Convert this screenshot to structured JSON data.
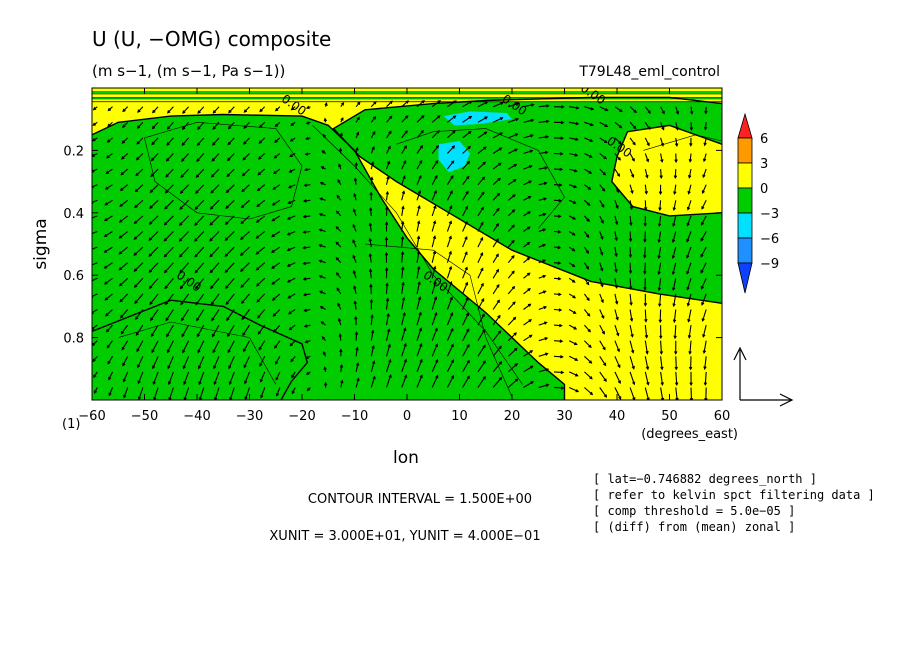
{
  "chart_data": {
    "type": "contour",
    "title": "U (U, −OMG) composite",
    "subtitle": "(m s−1, (m s−1, Pa s−1))",
    "experiment": "T79L48_eml_control",
    "xlabel": "lon",
    "xunits": "(degrees_east)",
    "ylabel": "sigma",
    "y_origin_label": "(1)",
    "xlim": [
      -60,
      60
    ],
    "ylim": [
      0.0,
      1.0
    ],
    "y_inverted": true,
    "x_ticks": [
      -60,
      -50,
      -40,
      -30,
      -20,
      -10,
      0,
      10,
      20,
      30,
      40,
      50,
      60
    ],
    "x_tick_labels": [
      "−60",
      "−50",
      "−40",
      "−30",
      "−20",
      "−10",
      "0",
      "10",
      "20",
      "30",
      "40",
      "50",
      "60"
    ],
    "y_ticks": [
      0.2,
      0.4,
      0.6,
      0.8
    ],
    "y_tick_labels": [
      "0.2",
      "0.4",
      "0.6",
      "0.8"
    ],
    "colorbar": {
      "levels": [
        6,
        3,
        0,
        -3,
        -6,
        -9
      ],
      "level_labels": [
        "6",
        "3",
        "0",
        "−3",
        "−6",
        "−9"
      ],
      "colors": [
        "#ff2020",
        "#ff9900",
        "#ffff00",
        "#00cc00",
        "#00e0ff",
        "#1e90ff",
        "#1040ff"
      ]
    },
    "contour_labels": [
      {
        "text": "0.00",
        "lon": -42,
        "sigma": 0.63
      },
      {
        "text": "0.00",
        "lon": 5,
        "sigma": 0.63
      },
      {
        "text": "0.00",
        "lon": 40,
        "sigma": 0.2
      },
      {
        "text": "0.00",
        "lon": -22,
        "sigma": 0.065
      },
      {
        "text": "0.00",
        "lon": 20,
        "sigma": 0.065
      },
      {
        "text": "0.00",
        "lon": 35,
        "sigma": 0.03
      }
    ],
    "zero_contour_west": [
      [
        -60,
        0.15
      ],
      [
        -55,
        0.11
      ],
      [
        -45,
        0.09
      ],
      [
        -35,
        0.085
      ],
      [
        -20,
        0.09
      ],
      [
        -15,
        0.12
      ],
      [
        -10,
        0.2
      ],
      [
        -5,
        0.35
      ],
      [
        0,
        0.48
      ],
      [
        5,
        0.58
      ],
      [
        15,
        0.72
      ],
      [
        25,
        0.88
      ],
      [
        30,
        0.95
      ],
      [
        30,
        1.0
      ]
    ],
    "zero_contour_east": [
      [
        60,
        0.05
      ],
      [
        50,
        0.03
      ],
      [
        35,
        0.03
      ],
      [
        25,
        0.035
      ],
      [
        15,
        0.04
      ],
      [
        5,
        0.05
      ],
      [
        -8,
        0.07
      ],
      [
        -14,
        0.13
      ],
      [
        -9,
        0.22
      ],
      [
        -2,
        0.3
      ],
      [
        8,
        0.4
      ],
      [
        20,
        0.52
      ],
      [
        35,
        0.62
      ],
      [
        48,
        0.66
      ],
      [
        60,
        0.69
      ]
    ],
    "zero_contour_lower_left": [
      [
        -60,
        0.78
      ],
      [
        -45,
        0.68
      ],
      [
        -35,
        0.7
      ],
      [
        -28,
        0.76
      ],
      [
        -20,
        0.82
      ],
      [
        -19,
        0.88
      ],
      [
        -22,
        0.94
      ],
      [
        -24,
        1.0
      ]
    ],
    "zero_contour_east_yellow": [
      [
        60,
        0.18
      ],
      [
        50,
        0.12
      ],
      [
        42,
        0.14
      ],
      [
        40,
        0.22
      ],
      [
        39,
        0.3
      ],
      [
        43,
        0.38
      ],
      [
        50,
        0.41
      ],
      [
        60,
        0.4
      ]
    ],
    "negative_patches": [
      {
        "label": "-3 to -6",
        "points": [
          [
            7,
            0.09
          ],
          [
            12,
            0.075
          ],
          [
            19,
            0.08
          ],
          [
            20,
            0.1
          ],
          [
            14,
            0.115
          ],
          [
            9,
            0.12
          ]
        ]
      },
      {
        "label": "-3 to -6",
        "points": [
          [
            6,
            0.18
          ],
          [
            10,
            0.17
          ],
          [
            12,
            0.21
          ],
          [
            11,
            0.25
          ],
          [
            8,
            0.27
          ],
          [
            6,
            0.23
          ]
        ]
      }
    ],
    "contour_interval": "CONTOUR INTERVAL = 1.500E+00",
    "vector_units": "XUNIT = 3.000E+01, YUNIT = 4.000E−01",
    "notes": [
      "[ lat=−0.746882 degrees_north ]",
      "[ refer to kelvin spct filtering data ]",
      "[ comp threshold = 5.0e−05 ]",
      "[ (diff) from (mean) zonal ]"
    ]
  }
}
